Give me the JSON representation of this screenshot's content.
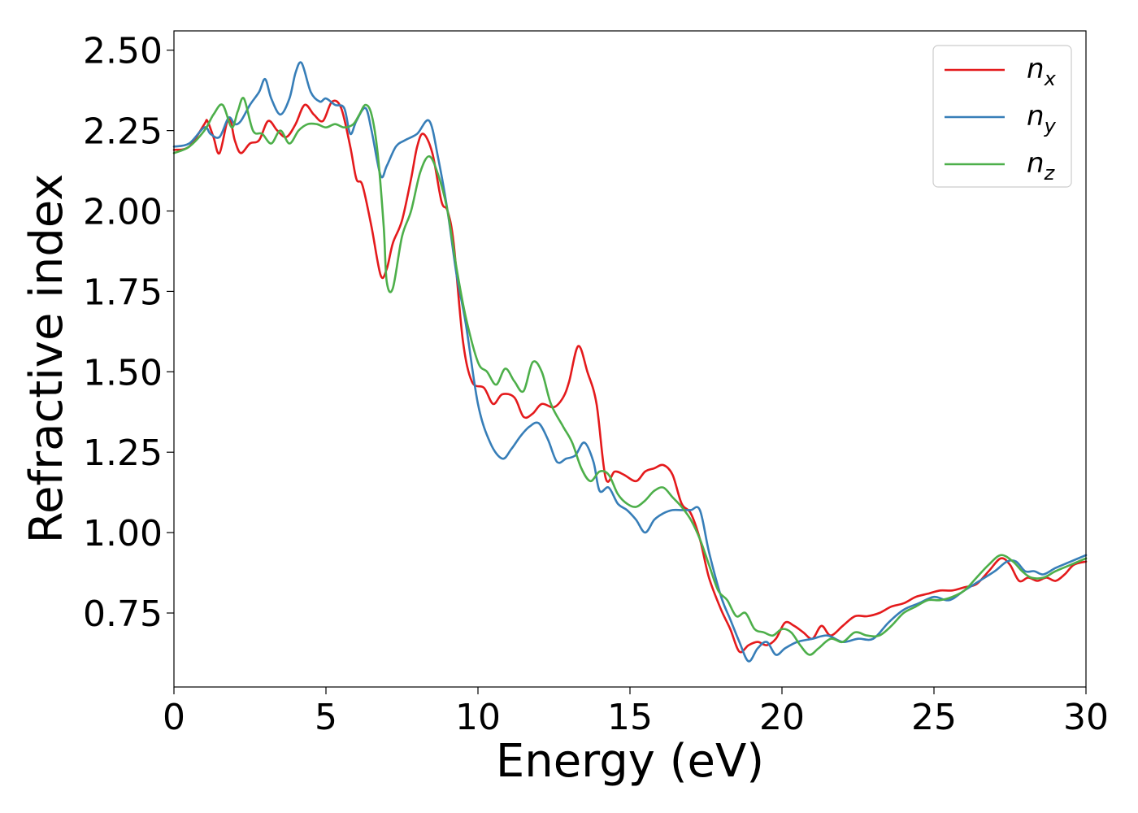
{
  "chart_data": {
    "type": "line",
    "xlabel": "Energy (eV)",
    "ylabel": "Refractive index",
    "xlim": [
      0,
      30
    ],
    "ylim": [
      0.52,
      2.56
    ],
    "xticks": [
      "0",
      "5",
      "10",
      "15",
      "20",
      "25",
      "30"
    ],
    "yticks": [
      "0.75",
      "1.00",
      "1.25",
      "1.50",
      "1.75",
      "2.00",
      "2.25",
      "2.50"
    ],
    "grid": false,
    "legend_position": "top-right",
    "series": [
      {
        "name": "n",
        "subscript": "x",
        "color": "#e41a1c",
        "x": [
          0,
          0.5,
          1.0,
          1.1,
          1.3,
          1.5,
          1.8,
          2.0,
          2.2,
          2.5,
          2.8,
          3.1,
          3.4,
          3.7,
          4.0,
          4.3,
          4.6,
          4.9,
          5.2,
          5.5,
          5.8,
          6.0,
          6.2,
          6.5,
          6.8,
          7.0,
          7.2,
          7.5,
          7.8,
          8.0,
          8.2,
          8.5,
          8.8,
          9.0,
          9.2,
          9.5,
          9.8,
          10.2,
          10.5,
          10.8,
          11.2,
          11.5,
          11.8,
          12.1,
          12.5,
          12.8,
          13.0,
          13.3,
          13.6,
          13.9,
          14.2,
          14.5,
          14.8,
          15.2,
          15.5,
          15.8,
          16.1,
          16.4,
          16.7,
          17.0,
          17.3,
          17.6,
          18.0,
          18.3,
          18.6,
          18.9,
          19.2,
          19.5,
          19.8,
          20.1,
          20.4,
          20.7,
          21.0,
          21.3,
          21.6,
          22.0,
          22.4,
          22.8,
          23.2,
          23.6,
          24.0,
          24.4,
          24.8,
          25.2,
          25.6,
          26.0,
          26.4,
          26.8,
          27.2,
          27.5,
          27.8,
          28.1,
          28.4,
          28.7,
          29.0,
          29.3,
          29.6,
          30.0
        ],
        "y": [
          2.19,
          2.2,
          2.27,
          2.28,
          2.23,
          2.18,
          2.29,
          2.22,
          2.18,
          2.21,
          2.22,
          2.28,
          2.25,
          2.23,
          2.27,
          2.33,
          2.3,
          2.28,
          2.34,
          2.32,
          2.2,
          2.1,
          2.08,
          1.95,
          1.8,
          1.82,
          1.9,
          1.97,
          2.1,
          2.2,
          2.24,
          2.18,
          2.03,
          2.0,
          1.9,
          1.6,
          1.47,
          1.45,
          1.4,
          1.43,
          1.42,
          1.36,
          1.37,
          1.4,
          1.39,
          1.42,
          1.47,
          1.58,
          1.5,
          1.4,
          1.17,
          1.19,
          1.18,
          1.16,
          1.19,
          1.2,
          1.21,
          1.18,
          1.09,
          1.06,
          0.98,
          0.86,
          0.76,
          0.7,
          0.63,
          0.65,
          0.66,
          0.65,
          0.67,
          0.72,
          0.71,
          0.69,
          0.67,
          0.71,
          0.68,
          0.71,
          0.74,
          0.74,
          0.75,
          0.77,
          0.78,
          0.8,
          0.81,
          0.82,
          0.82,
          0.83,
          0.84,
          0.88,
          0.92,
          0.9,
          0.85,
          0.86,
          0.85,
          0.86,
          0.85,
          0.87,
          0.9,
          0.91
        ]
      },
      {
        "name": "n",
        "subscript": "y",
        "color": "#377eb8",
        "x": [
          0,
          0.5,
          1.0,
          1.2,
          1.5,
          1.8,
          2.0,
          2.2,
          2.5,
          2.8,
          3.0,
          3.2,
          3.5,
          3.8,
          4.0,
          4.2,
          4.5,
          4.8,
          5.0,
          5.3,
          5.6,
          5.8,
          6.0,
          6.3,
          6.5,
          6.8,
          7.0,
          7.3,
          7.6,
          8.0,
          8.4,
          8.7,
          9.0,
          9.3,
          9.6,
          10.0,
          10.4,
          10.8,
          11.1,
          11.4,
          11.7,
          12.0,
          12.3,
          12.6,
          12.9,
          13.2,
          13.5,
          13.8,
          14.0,
          14.3,
          14.6,
          14.9,
          15.2,
          15.5,
          15.8,
          16.1,
          16.4,
          16.7,
          17.0,
          17.3,
          17.6,
          18.0,
          18.3,
          18.6,
          18.9,
          19.2,
          19.5,
          19.8,
          20.1,
          20.5,
          21.0,
          21.5,
          22.0,
          22.5,
          23.0,
          23.5,
          24.0,
          24.5,
          25.0,
          25.5,
          26.0,
          26.5,
          27.0,
          27.4,
          27.7,
          28.0,
          28.3,
          28.6,
          29.0,
          29.5,
          30.0
        ],
        "y": [
          2.2,
          2.21,
          2.26,
          2.24,
          2.23,
          2.29,
          2.27,
          2.28,
          2.33,
          2.37,
          2.41,
          2.35,
          2.3,
          2.35,
          2.43,
          2.46,
          2.37,
          2.34,
          2.35,
          2.33,
          2.32,
          2.24,
          2.28,
          2.32,
          2.25,
          2.11,
          2.14,
          2.2,
          2.22,
          2.24,
          2.28,
          2.16,
          2.0,
          1.8,
          1.65,
          1.4,
          1.28,
          1.23,
          1.26,
          1.3,
          1.33,
          1.34,
          1.29,
          1.22,
          1.23,
          1.24,
          1.28,
          1.22,
          1.13,
          1.14,
          1.09,
          1.07,
          1.04,
          1.0,
          1.04,
          1.06,
          1.07,
          1.07,
          1.07,
          1.07,
          0.94,
          0.8,
          0.73,
          0.66,
          0.6,
          0.64,
          0.66,
          0.62,
          0.64,
          0.66,
          0.67,
          0.68,
          0.66,
          0.67,
          0.67,
          0.72,
          0.76,
          0.78,
          0.8,
          0.79,
          0.82,
          0.85,
          0.88,
          0.91,
          0.91,
          0.88,
          0.88,
          0.87,
          0.89,
          0.91,
          0.93
        ]
      },
      {
        "name": "n",
        "subscript": "z",
        "color": "#4daf4a",
        "x": [
          0,
          0.5,
          1.0,
          1.3,
          1.6,
          1.9,
          2.1,
          2.3,
          2.6,
          2.9,
          3.2,
          3.5,
          3.8,
          4.1,
          4.4,
          4.7,
          5.0,
          5.3,
          5.6,
          5.9,
          6.1,
          6.3,
          6.5,
          6.7,
          6.9,
          7.0,
          7.2,
          7.5,
          7.8,
          8.1,
          8.4,
          8.7,
          9.0,
          9.3,
          9.6,
          10.0,
          10.3,
          10.6,
          10.9,
          11.2,
          11.5,
          11.8,
          12.1,
          12.4,
          12.8,
          13.1,
          13.4,
          13.7,
          14.0,
          14.3,
          14.6,
          14.9,
          15.2,
          15.5,
          15.8,
          16.1,
          16.4,
          16.7,
          17.0,
          17.3,
          17.6,
          17.9,
          18.2,
          18.5,
          18.8,
          19.1,
          19.4,
          19.7,
          20.0,
          20.3,
          20.6,
          20.9,
          21.2,
          21.6,
          22.0,
          22.4,
          22.8,
          23.2,
          23.6,
          24.0,
          24.4,
          24.8,
          25.2,
          25.6,
          26.0,
          26.4,
          26.8,
          27.2,
          27.6,
          27.9,
          28.2,
          28.6,
          29.0,
          29.5,
          30.0
        ],
        "y": [
          2.18,
          2.2,
          2.25,
          2.3,
          2.33,
          2.26,
          2.31,
          2.35,
          2.25,
          2.24,
          2.21,
          2.25,
          2.21,
          2.25,
          2.27,
          2.27,
          2.26,
          2.27,
          2.26,
          2.27,
          2.3,
          2.33,
          2.3,
          2.18,
          1.95,
          1.78,
          1.76,
          1.92,
          2.0,
          2.12,
          2.17,
          2.11,
          2.0,
          1.82,
          1.67,
          1.53,
          1.5,
          1.46,
          1.51,
          1.47,
          1.44,
          1.53,
          1.5,
          1.4,
          1.33,
          1.28,
          1.2,
          1.16,
          1.19,
          1.18,
          1.12,
          1.09,
          1.08,
          1.1,
          1.13,
          1.14,
          1.11,
          1.08,
          1.04,
          0.98,
          0.9,
          0.82,
          0.79,
          0.74,
          0.75,
          0.7,
          0.69,
          0.68,
          0.7,
          0.69,
          0.65,
          0.62,
          0.64,
          0.67,
          0.66,
          0.69,
          0.68,
          0.68,
          0.71,
          0.75,
          0.77,
          0.79,
          0.79,
          0.8,
          0.82,
          0.86,
          0.9,
          0.93,
          0.91,
          0.88,
          0.86,
          0.86,
          0.88,
          0.9,
          0.92
        ]
      }
    ]
  }
}
